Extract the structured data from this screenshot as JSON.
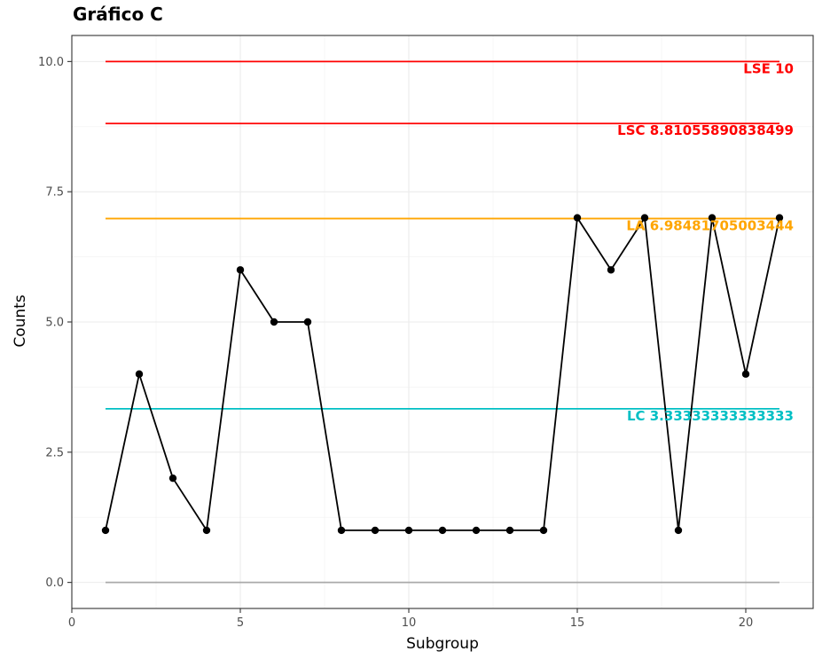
{
  "chart_data": {
    "type": "line",
    "title": "Gráfico  C",
    "xlabel": "Subgroup",
    "ylabel": "Counts",
    "xlim": [
      0,
      22
    ],
    "ylim": [
      -0.5,
      10.5
    ],
    "x_ticks": [
      0,
      5,
      10,
      15,
      20
    ],
    "x_tick_labels": [
      "0",
      "5",
      "10",
      "15",
      "20"
    ],
    "y_ticks": [
      0,
      2.5,
      5,
      7.5,
      10
    ],
    "y_tick_labels": [
      "0.0",
      "2.5",
      "5.0",
      "7.5",
      "10.0"
    ],
    "grid": true,
    "theme": "bw",
    "series": [
      {
        "color": "#000000",
        "x": [
          1,
          2,
          3,
          4,
          5,
          6,
          7,
          8,
          9,
          10,
          11,
          12,
          13,
          14,
          15,
          16,
          17,
          18,
          19,
          20,
          21
        ],
        "y": [
          1,
          4,
          2,
          1,
          6,
          5,
          5,
          1,
          1,
          1,
          1,
          1,
          1,
          1,
          7,
          6,
          7,
          1,
          7,
          4,
          7
        ]
      }
    ],
    "reference_lines": [
      {
        "y": 10,
        "x_range": [
          1,
          21
        ],
        "color": "#ff0000",
        "label": "LSE 10"
      },
      {
        "y": 8.81055890838499,
        "x_range": [
          1,
          21
        ],
        "color": "#ff0000",
        "label": "LSC 8.81055890838499"
      },
      {
        "y": 6.98481705003444,
        "x_range": [
          1,
          21
        ],
        "color": "#ffa500",
        "label": "LA 6.98481705003444"
      },
      {
        "y": 3.33333333333333,
        "x_range": [
          1,
          21
        ],
        "color": "#00bfc4",
        "label": "LC 3.33333333333333"
      },
      {
        "y": 0,
        "x_range": [
          1,
          21
        ],
        "color": "#a9a9a9",
        "label": ""
      }
    ]
  }
}
